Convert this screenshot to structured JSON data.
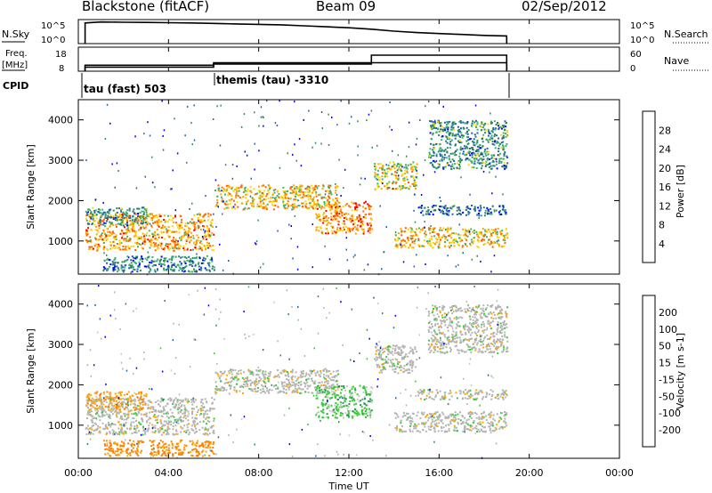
{
  "header": {
    "title": "Blackstone (fitACF)",
    "beam": "Beam 09",
    "date": "02/Sep/2012"
  },
  "top_panels": {
    "nsky_label": "N.Sky",
    "nsky_ticks": [
      "10^5",
      "10^0"
    ],
    "nsearch_label": "N.Search",
    "freq_label": "Freq.",
    "freq_unit": "[MHz]",
    "freq_ticks": [
      "18",
      "8"
    ],
    "nave_label": "Nave",
    "nave_ticks": [
      "60",
      "0"
    ],
    "cpid_label": "CPID",
    "cpid_1": "tau (fast) 503",
    "cpid_2": "themis (tau) -3310"
  },
  "x_axis": {
    "label": "Time UT",
    "ticks": [
      "00:00",
      "04:00",
      "08:00",
      "12:00",
      "16:00",
      "20:00",
      "00:00"
    ]
  },
  "colors": {
    "power_scale": [
      "#0000ff",
      "#2060a8",
      "#2e8b57",
      "#3cb371",
      "#ffd700",
      "#ffa500",
      "#ff6000",
      "#ff0000"
    ],
    "velocity_scale": [
      "#ff0000",
      "#ff4000",
      "#ff8000",
      "#ffa500",
      "#c8c8c8",
      "#32cd32",
      "#2e8b57",
      "#2060a8",
      "#0000ff"
    ],
    "ground_scatter": "#b4b4b4"
  },
  "chart_data": [
    {
      "type": "line",
      "title": "N.Sky",
      "x_range_hours": [
        0,
        24
      ],
      "ylim_log10": [
        0,
        5
      ],
      "x": [
        0.3,
        1,
        2,
        3,
        4,
        5,
        6,
        7,
        8,
        9,
        10,
        11,
        12,
        13,
        14,
        15,
        16,
        17,
        18,
        19
      ],
      "log10_values": [
        4.3,
        4.5,
        4.45,
        4.4,
        4.35,
        4.3,
        4.2,
        4.1,
        4.0,
        3.9,
        3.7,
        3.5,
        3.3,
        3.0,
        2.6,
        2.3,
        2.1,
        1.9,
        1.7,
        1.6
      ]
    },
    {
      "type": "line",
      "title": "Freq. [MHz]",
      "x_range_hours": [
        0,
        24
      ],
      "ylim": [
        8,
        18
      ],
      "x": [
        0.3,
        6.0,
        13.0,
        19.0
      ],
      "values": [
        10.5,
        11.5,
        11.5,
        11.5
      ]
    },
    {
      "type": "line",
      "title": "Nave",
      "x_range_hours": [
        0,
        24
      ],
      "ylim": [
        0,
        60
      ],
      "x": [
        0.3,
        6.0,
        13.0,
        19.0
      ],
      "values": [
        10,
        18,
        40,
        40
      ]
    },
    {
      "type": "heatmap",
      "title": "Power [dB]",
      "xlabel": "Time UT",
      "ylabel": "Slant Range [km]",
      "x_range_hours": [
        0,
        24
      ],
      "ylim": [
        180,
        4500
      ],
      "y_ticks": [
        1000,
        2000,
        3000,
        4000
      ],
      "colorbar_ticks": [
        4,
        8,
        12,
        16,
        20,
        24,
        28
      ],
      "colorbar_range": [
        0,
        32
      ],
      "bands": [
        {
          "t0": 0.3,
          "t1": 6.0,
          "r0": 780,
          "r1": 1700,
          "value": 22
        },
        {
          "t0": 0.3,
          "t1": 3.0,
          "r0": 1400,
          "r1": 1850,
          "value": 10
        },
        {
          "t0": 1.0,
          "t1": 6.0,
          "r0": 250,
          "r1": 650,
          "value": 9
        },
        {
          "t0": 6.0,
          "t1": 11.5,
          "r0": 1800,
          "r1": 2400,
          "value": 20
        },
        {
          "t0": 10.5,
          "t1": 13.0,
          "r0": 1200,
          "r1": 2000,
          "value": 24
        },
        {
          "t0": 13.1,
          "t1": 15.0,
          "r0": 2300,
          "r1": 3000,
          "value": 18
        },
        {
          "t0": 14.0,
          "t1": 19.0,
          "r0": 850,
          "r1": 1350,
          "value": 20
        },
        {
          "t0": 15.0,
          "t1": 19.0,
          "r0": 1650,
          "r1": 1900,
          "value": 8
        },
        {
          "t0": 15.5,
          "t1": 19.0,
          "r0": 2800,
          "r1": 4000,
          "value": 10
        }
      ]
    },
    {
      "type": "heatmap",
      "title": "Velocity [m s-1]",
      "xlabel": "Time UT",
      "ylabel": "Slant Range [km]",
      "x_range_hours": [
        0,
        24
      ],
      "ylim": [
        180,
        4500
      ],
      "y_ticks": [
        1000,
        2000,
        3000,
        4000
      ],
      "colorbar_ticks": [
        200,
        100,
        50,
        15,
        -15,
        -50,
        -100,
        -200
      ],
      "bands": [
        {
          "t0": 0.3,
          "t1": 6.0,
          "r0": 780,
          "r1": 1700,
          "value": 0,
          "ground_scatter": true
        },
        {
          "t0": 0.3,
          "t1": 3.0,
          "r0": 1400,
          "r1": 1850,
          "value": -40
        },
        {
          "t0": 1.0,
          "t1": 6.0,
          "r0": 250,
          "r1": 650,
          "value": -60
        },
        {
          "t0": 6.0,
          "t1": 11.5,
          "r0": 1800,
          "r1": 2400,
          "value": 0,
          "ground_scatter": true
        },
        {
          "t0": 10.5,
          "t1": 13.0,
          "r0": 1200,
          "r1": 2000,
          "value": 30
        },
        {
          "t0": 13.1,
          "t1": 15.0,
          "r0": 2300,
          "r1": 3000,
          "value": 0,
          "ground_scatter": true
        },
        {
          "t0": 14.0,
          "t1": 19.0,
          "r0": 850,
          "r1": 1350,
          "value": 0,
          "ground_scatter": true
        },
        {
          "t0": 15.0,
          "t1": 19.0,
          "r0": 1650,
          "r1": 1900,
          "value": 0,
          "ground_scatter": true
        },
        {
          "t0": 15.5,
          "t1": 19.0,
          "r0": 2800,
          "r1": 4000,
          "value": 0,
          "ground_scatter": true
        }
      ]
    }
  ]
}
